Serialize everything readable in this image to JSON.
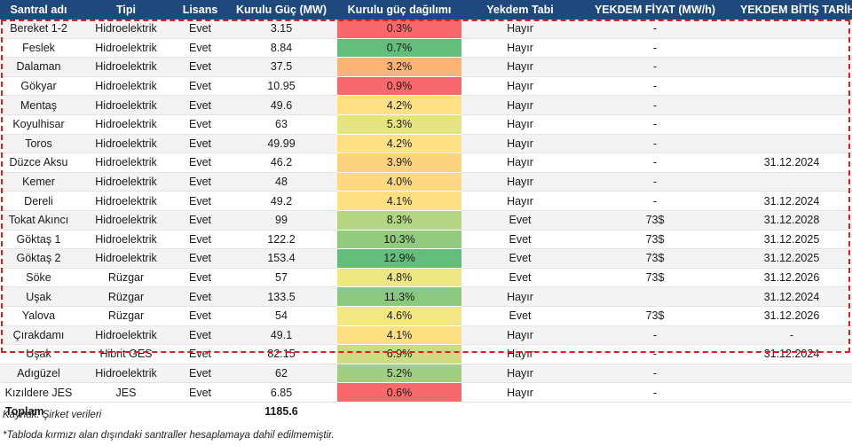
{
  "headers": [
    "Santral adı",
    "Tipi",
    "Lisans",
    "Kurulu Güç (MW)",
    "Kurulu güç dağılımı",
    "Yekdem Tabi",
    "YEKDEM FİYAT (MW/h)",
    "YEKDEM BİTİŞ TARİHİ"
  ],
  "rows": [
    {
      "name": "Bereket 1-2",
      "type": "Hidroelektrik",
      "license": "Evet",
      "power": "3.15",
      "share": "0.3%",
      "share_color": "#f8696b",
      "yekdem": "Hayır",
      "price": "-",
      "end": ""
    },
    {
      "name": "Feslek",
      "type": "Hidroelektrik",
      "license": "Evet",
      "power": "8.84",
      "share": "0.7%",
      "share_color": "#63be7b",
      "yekdem": "Hayır",
      "price": "-",
      "end": ""
    },
    {
      "name": "Dalaman",
      "type": "Hidroelektrik",
      "license": "Evet",
      "power": "37.5",
      "share": "3.2%",
      "share_color": "#fbb473",
      "yekdem": "Hayır",
      "price": "-",
      "end": ""
    },
    {
      "name": "Gökyar",
      "type": "Hidroelektrik",
      "license": "Evet",
      "power": "10.95",
      "share": "0.9%",
      "share_color": "#f8696b",
      "yekdem": "Hayır",
      "price": "-",
      "end": ""
    },
    {
      "name": "Mentaş",
      "type": "Hidroelektrik",
      "license": "Evet",
      "power": "49.6",
      "share": "4.2%",
      "share_color": "#fee183",
      "yekdem": "Hayır",
      "price": "-",
      "end": ""
    },
    {
      "name": "Koyulhisar",
      "type": "Hidroelektrik",
      "license": "Evet",
      "power": "63",
      "share": "5.3%",
      "share_color": "#e5e483",
      "yekdem": "Hayır",
      "price": "-",
      "end": ""
    },
    {
      "name": "Toros",
      "type": "Hidroelektrik",
      "license": "Evet",
      "power": "49.99",
      "share": "4.2%",
      "share_color": "#fee183",
      "yekdem": "Hayır",
      "price": "-",
      "end": ""
    },
    {
      "name": "Düzce Aksu",
      "type": "Hidroelektrik",
      "license": "Evet",
      "power": "46.2",
      "share": "3.9%",
      "share_color": "#fdd27f",
      "yekdem": "Hayır",
      "price": "-",
      "end": "31.12.2024"
    },
    {
      "name": "Kemer",
      "type": "Hidroelektrik",
      "license": "Evet",
      "power": "48",
      "share": "4.0%",
      "share_color": "#fed981",
      "yekdem": "Hayır",
      "price": "-",
      "end": ""
    },
    {
      "name": "Dereli",
      "type": "Hidroelektrik",
      "license": "Evet",
      "power": "49.2",
      "share": "4.1%",
      "share_color": "#fedf82",
      "yekdem": "Hayır",
      "price": "-",
      "end": "31.12.2024"
    },
    {
      "name": "Tokat Akıncı",
      "type": "Hidroelektrik",
      "license": "Evet",
      "power": "99",
      "share": "8.3%",
      "share_color": "#b5d680",
      "yekdem": "Evet",
      "price": "73$",
      "end": "31.12.2028"
    },
    {
      "name": "Göktaş 1",
      "type": "Hidroelektrik",
      "license": "Evet",
      "power": "122.2",
      "share": "10.3%",
      "share_color": "#93cb7e",
      "yekdem": "Evet",
      "price": "73$",
      "end": "31.12.2025"
    },
    {
      "name": "Göktaş 2",
      "type": "Hidroelektrik",
      "license": "Evet",
      "power": "153.4",
      "share": "12.9%",
      "share_color": "#63be7b",
      "yekdem": "Evet",
      "price": "73$",
      "end": "31.12.2025"
    },
    {
      "name": "Söke",
      "type": "Rüzgar",
      "license": "Evet",
      "power": "57",
      "share": "4.8%",
      "share_color": "#eee683",
      "yekdem": "Evet",
      "price": "73$",
      "end": "31.12.2026"
    },
    {
      "name": "Uşak",
      "type": "Rüzgar",
      "license": "Evet",
      "power": "133.5",
      "share": "11.3%",
      "share_color": "#8ac97e",
      "yekdem": "Hayır",
      "price": "",
      "end": "31.12.2024"
    },
    {
      "name": "Yalova",
      "type": "Rüzgar",
      "license": "Evet",
      "power": "54",
      "share": "4.6%",
      "share_color": "#f3e783",
      "yekdem": "Evet",
      "price": "73$",
      "end": "31.12.2026"
    },
    {
      "name": "Çırakdamı",
      "type": "Hidroelektrik",
      "license": "Evet",
      "power": "49.1",
      "share": "4.1%",
      "share_color": "#fedf82",
      "yekdem": "Hayır",
      "price": "-",
      "end": "-"
    },
    {
      "name": "Uşak",
      "type": "Hibrit GES",
      "license": "Evet",
      "power": "82.15",
      "share": "6.9%",
      "share_color": "#cbdc81",
      "yekdem": "Hayır",
      "price": "-",
      "end": "31.12.2024"
    },
    {
      "name": "Adıgüzel",
      "type": "Hidroelektrik",
      "license": "Evet",
      "power": "62",
      "share": "5.2%",
      "share_color": "#9fcf7f",
      "yekdem": "Hayır",
      "price": "-",
      "end": ""
    },
    {
      "name": "Kızıldere JES",
      "type": "JES",
      "license": "Evet",
      "power": "6.85",
      "share": "0.6%",
      "share_color": "#f8696b",
      "yekdem": "Hayır",
      "price": "-",
      "end": ""
    }
  ],
  "total": {
    "label": "Toplam",
    "power": "1185.6"
  },
  "source": "Kaynak: Şirket verileri",
  "note": "*Tabloda kırmızı alan dışındaki santraller hesaplamaya dahil edilmemiştir."
}
